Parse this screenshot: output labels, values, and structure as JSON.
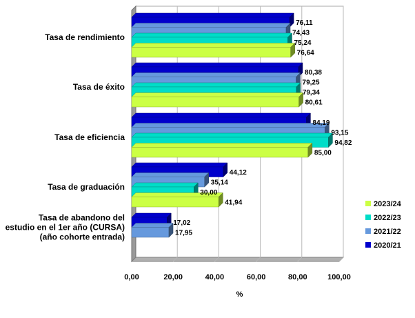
{
  "chart_data": {
    "type": "bar",
    "orientation": "horizontal",
    "style": "3d",
    "categories": [
      "Tasa de rendimiento",
      "Tasa de éxito",
      "Tasa de eficiencia",
      "Tasa de graduación",
      "Tasa de abandono del estudio en el 1er año (CURSA) (año cohorte entrada)"
    ],
    "category_lines": [
      [
        "Tasa de rendimiento"
      ],
      [
        "Tasa de éxito"
      ],
      [
        "Tasa de eficiencia"
      ],
      [
        "Tasa de graduación"
      ],
      [
        "Tasa de abandono del",
        "estudio en el 1er año (CURSA)",
        "(año cohorte entrada)"
      ]
    ],
    "series": [
      {
        "name": "2020/21",
        "color": "#0000CC",
        "values": [
          76.11,
          80.38,
          84.19,
          44.12,
          17.02
        ],
        "labels": [
          "76,11",
          "80,38",
          "84,19",
          "44,12",
          "17,02"
        ]
      },
      {
        "name": "2021/22",
        "color": "#6699DD",
        "values": [
          74.43,
          79.25,
          93.15,
          35.14,
          17.95
        ],
        "labels": [
          "74,43",
          "79,25",
          "93,15",
          "35,14",
          "17,95"
        ]
      },
      {
        "name": "2022/23",
        "color": "#00DDC8",
        "values": [
          75.24,
          79.34,
          94.82,
          30.0,
          null
        ],
        "labels": [
          "75,24",
          "79,34",
          "94,82",
          "30,00",
          ""
        ]
      },
      {
        "name": "2023/24",
        "color": "#CCFF44",
        "values": [
          76.64,
          80.61,
          85.0,
          41.94,
          null
        ],
        "labels": [
          "76,64",
          "80,61",
          "85,00",
          "41,94",
          ""
        ]
      }
    ],
    "x_ticks": [
      "0,00",
      "20,00",
      "40,00",
      "60,00",
      "80,00",
      "100,00"
    ],
    "xlim": [
      0,
      100
    ],
    "xlabel": "%",
    "grid": true,
    "legend_position": "right",
    "legend_order": [
      "2023/24",
      "2022/23",
      "2021/22",
      "2020/21"
    ]
  }
}
